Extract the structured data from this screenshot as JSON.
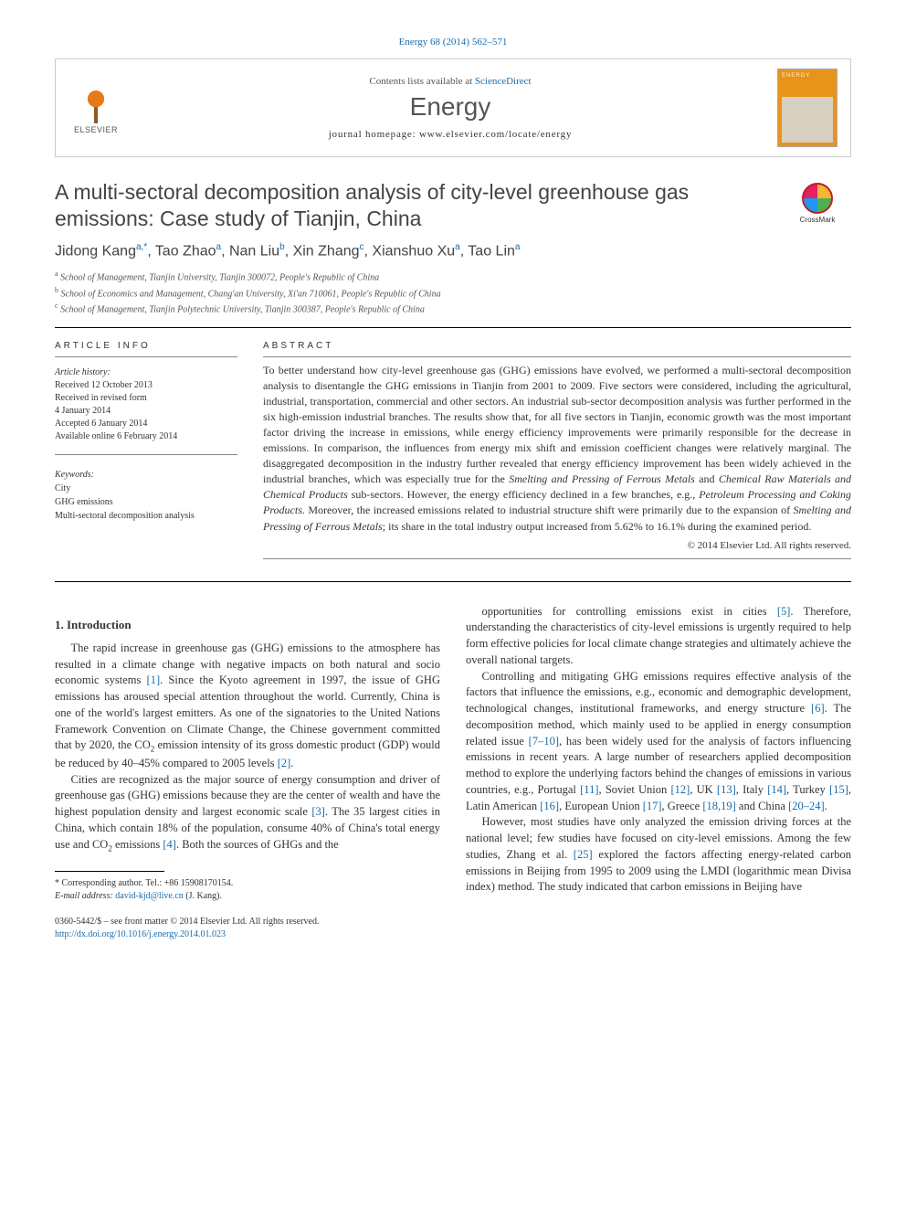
{
  "citation": "Energy 68 (2014) 562–571",
  "header": {
    "contents_prefix": "Contents lists available at ",
    "contents_link": "ScienceDirect",
    "journal": "Energy",
    "homepage_prefix": "journal homepage: ",
    "homepage_url": "www.elsevier.com/locate/energy",
    "publisher": "ELSEVIER",
    "cover_label": "ENERGY"
  },
  "title": "A multi-sectoral decomposition analysis of city-level greenhouse gas emissions: Case study of Tianjin, China",
  "crossmark": "CrossMark",
  "authors_html": "Jidong Kang<sup>a,*</sup>, Tao Zhao<sup>a</sup>, Nan Liu<sup>b</sup>, Xin Zhang<sup>c</sup>, Xianshuo Xu<sup>a</sup>, Tao Lin<sup>a</sup>",
  "affiliations": {
    "a": "School of Management, Tianjin University, Tianjin 300072, People's Republic of China",
    "b": "School of Economics and Management, Chang'an University, Xi'an 710061, People's Republic of China",
    "c": "School of Management, Tianjin Polytechnic University, Tianjin 300387, People's Republic of China"
  },
  "article_info": {
    "heading": "ARTICLE INFO",
    "history_label": "Article history:",
    "received": "Received 12 October 2013",
    "revised_label": "Received in revised form",
    "revised_date": "4 January 2014",
    "accepted": "Accepted 6 January 2014",
    "online": "Available online 6 February 2014",
    "keywords_label": "Keywords:",
    "keywords": [
      "City",
      "GHG emissions",
      "Multi-sectoral decomposition analysis"
    ]
  },
  "abstract": {
    "heading": "ABSTRACT",
    "text": "To better understand how city-level greenhouse gas (GHG) emissions have evolved, we performed a multi-sectoral decomposition analysis to disentangle the GHG emissions in Tianjin from 2001 to 2009. Five sectors were considered, including the agricultural, industrial, transportation, commercial and other sectors. An industrial sub-sector decomposition analysis was further performed in the six high-emission industrial branches. The results show that, for all five sectors in Tianjin, economic growth was the most important factor driving the increase in emissions, while energy efficiency improvements were primarily responsible for the decrease in emissions. In comparison, the influences from energy mix shift and emission coefficient changes were relatively marginal. The disaggregated decomposition in the industry further revealed that energy efficiency improvement has been widely achieved in the industrial branches, which was especially true for the <em>Smelting and Pressing of Ferrous Metals</em> and <em>Chemical Raw Materials and Chemical Products</em> sub-sectors. However, the energy efficiency declined in a few branches, e.g., <em>Petroleum Processing and Coking Products</em>. Moreover, the increased emissions related to industrial structure shift were primarily due to the expansion of <em>Smelting and Pressing of Ferrous Metals</em>; its share in the total industry output increased from 5.62% to 16.1% during the examined period.",
    "copyright": "© 2014 Elsevier Ltd. All rights reserved."
  },
  "body": {
    "section1_head": "1. Introduction",
    "p1": "The rapid increase in greenhouse gas (GHG) emissions to the atmosphere has resulted in a climate change with negative impacts on both natural and socio economic systems <span class='ref'>[1]</span>. Since the Kyoto agreement in 1997, the issue of GHG emissions has aroused special attention throughout the world. Currently, China is one of the world's largest emitters. As one of the signatories to the United Nations Framework Convention on Climate Change, the Chinese government committed that by 2020, the CO<sub>2</sub> emission intensity of its gross domestic product (GDP) would be reduced by 40–45% compared to 2005 levels <span class='ref'>[2]</span>.",
    "p2": "Cities are recognized as the major source of energy consumption and driver of greenhouse gas (GHG) emissions because they are the center of wealth and have the highest population density and largest economic scale <span class='ref'>[3]</span>. The 35 largest cities in China, which contain 18% of the population, consume 40% of China's total energy use and CO<sub>2</sub> emissions <span class='ref'>[4]</span>. Both the sources of GHGs and the",
    "p3": "opportunities for controlling emissions exist in cities <span class='ref'>[5]</span>. Therefore, understanding the characteristics of city-level emissions is urgently required to help form effective policies for local climate change strategies and ultimately achieve the overall national targets.",
    "p4": "Controlling and mitigating GHG emissions requires effective analysis of the factors that influence the emissions, e.g., economic and demographic development, technological changes, institutional frameworks, and energy structure <span class='ref'>[6]</span>. The decomposition method, which mainly used to be applied in energy consumption related issue <span class='ref'>[7–10]</span>, has been widely used for the analysis of factors influencing emissions in recent years. A large number of researchers applied decomposition method to explore the underlying factors behind the changes of emissions in various countries, e.g., Portugal <span class='ref'>[11]</span>, Soviet Union <span class='ref'>[12]</span>, UK <span class='ref'>[13]</span>, Italy <span class='ref'>[14]</span>, Turkey <span class='ref'>[15]</span>, Latin American <span class='ref'>[16]</span>, European Union <span class='ref'>[17]</span>, Greece <span class='ref'>[18,19]</span> and China <span class='ref'>[20–24]</span>.",
    "p5": "However, most studies have only analyzed the emission driving forces at the national level; few studies have focused on city-level emissions. Among the few studies, Zhang et al. <span class='ref'>[25]</span> explored the factors affecting energy-related carbon emissions in Beijing from 1995 to 2009 using the LMDI (logarithmic mean Divisa index) method. The study indicated that carbon emissions in Beijing have"
  },
  "footnotes": {
    "corr_label": "* Corresponding author. Tel.: +86 15908170154.",
    "email_label": "E-mail address: ",
    "email": "david-kjd@live.cn",
    "email_suffix": " (J. Kang)."
  },
  "bottom": {
    "line1": "0360-5442/$ – see front matter © 2014 Elsevier Ltd. All rights reserved.",
    "doi": "http://dx.doi.org/10.1016/j.energy.2014.01.023"
  },
  "colors": {
    "link": "#1a6ba8",
    "accent": "#e67a1a"
  }
}
